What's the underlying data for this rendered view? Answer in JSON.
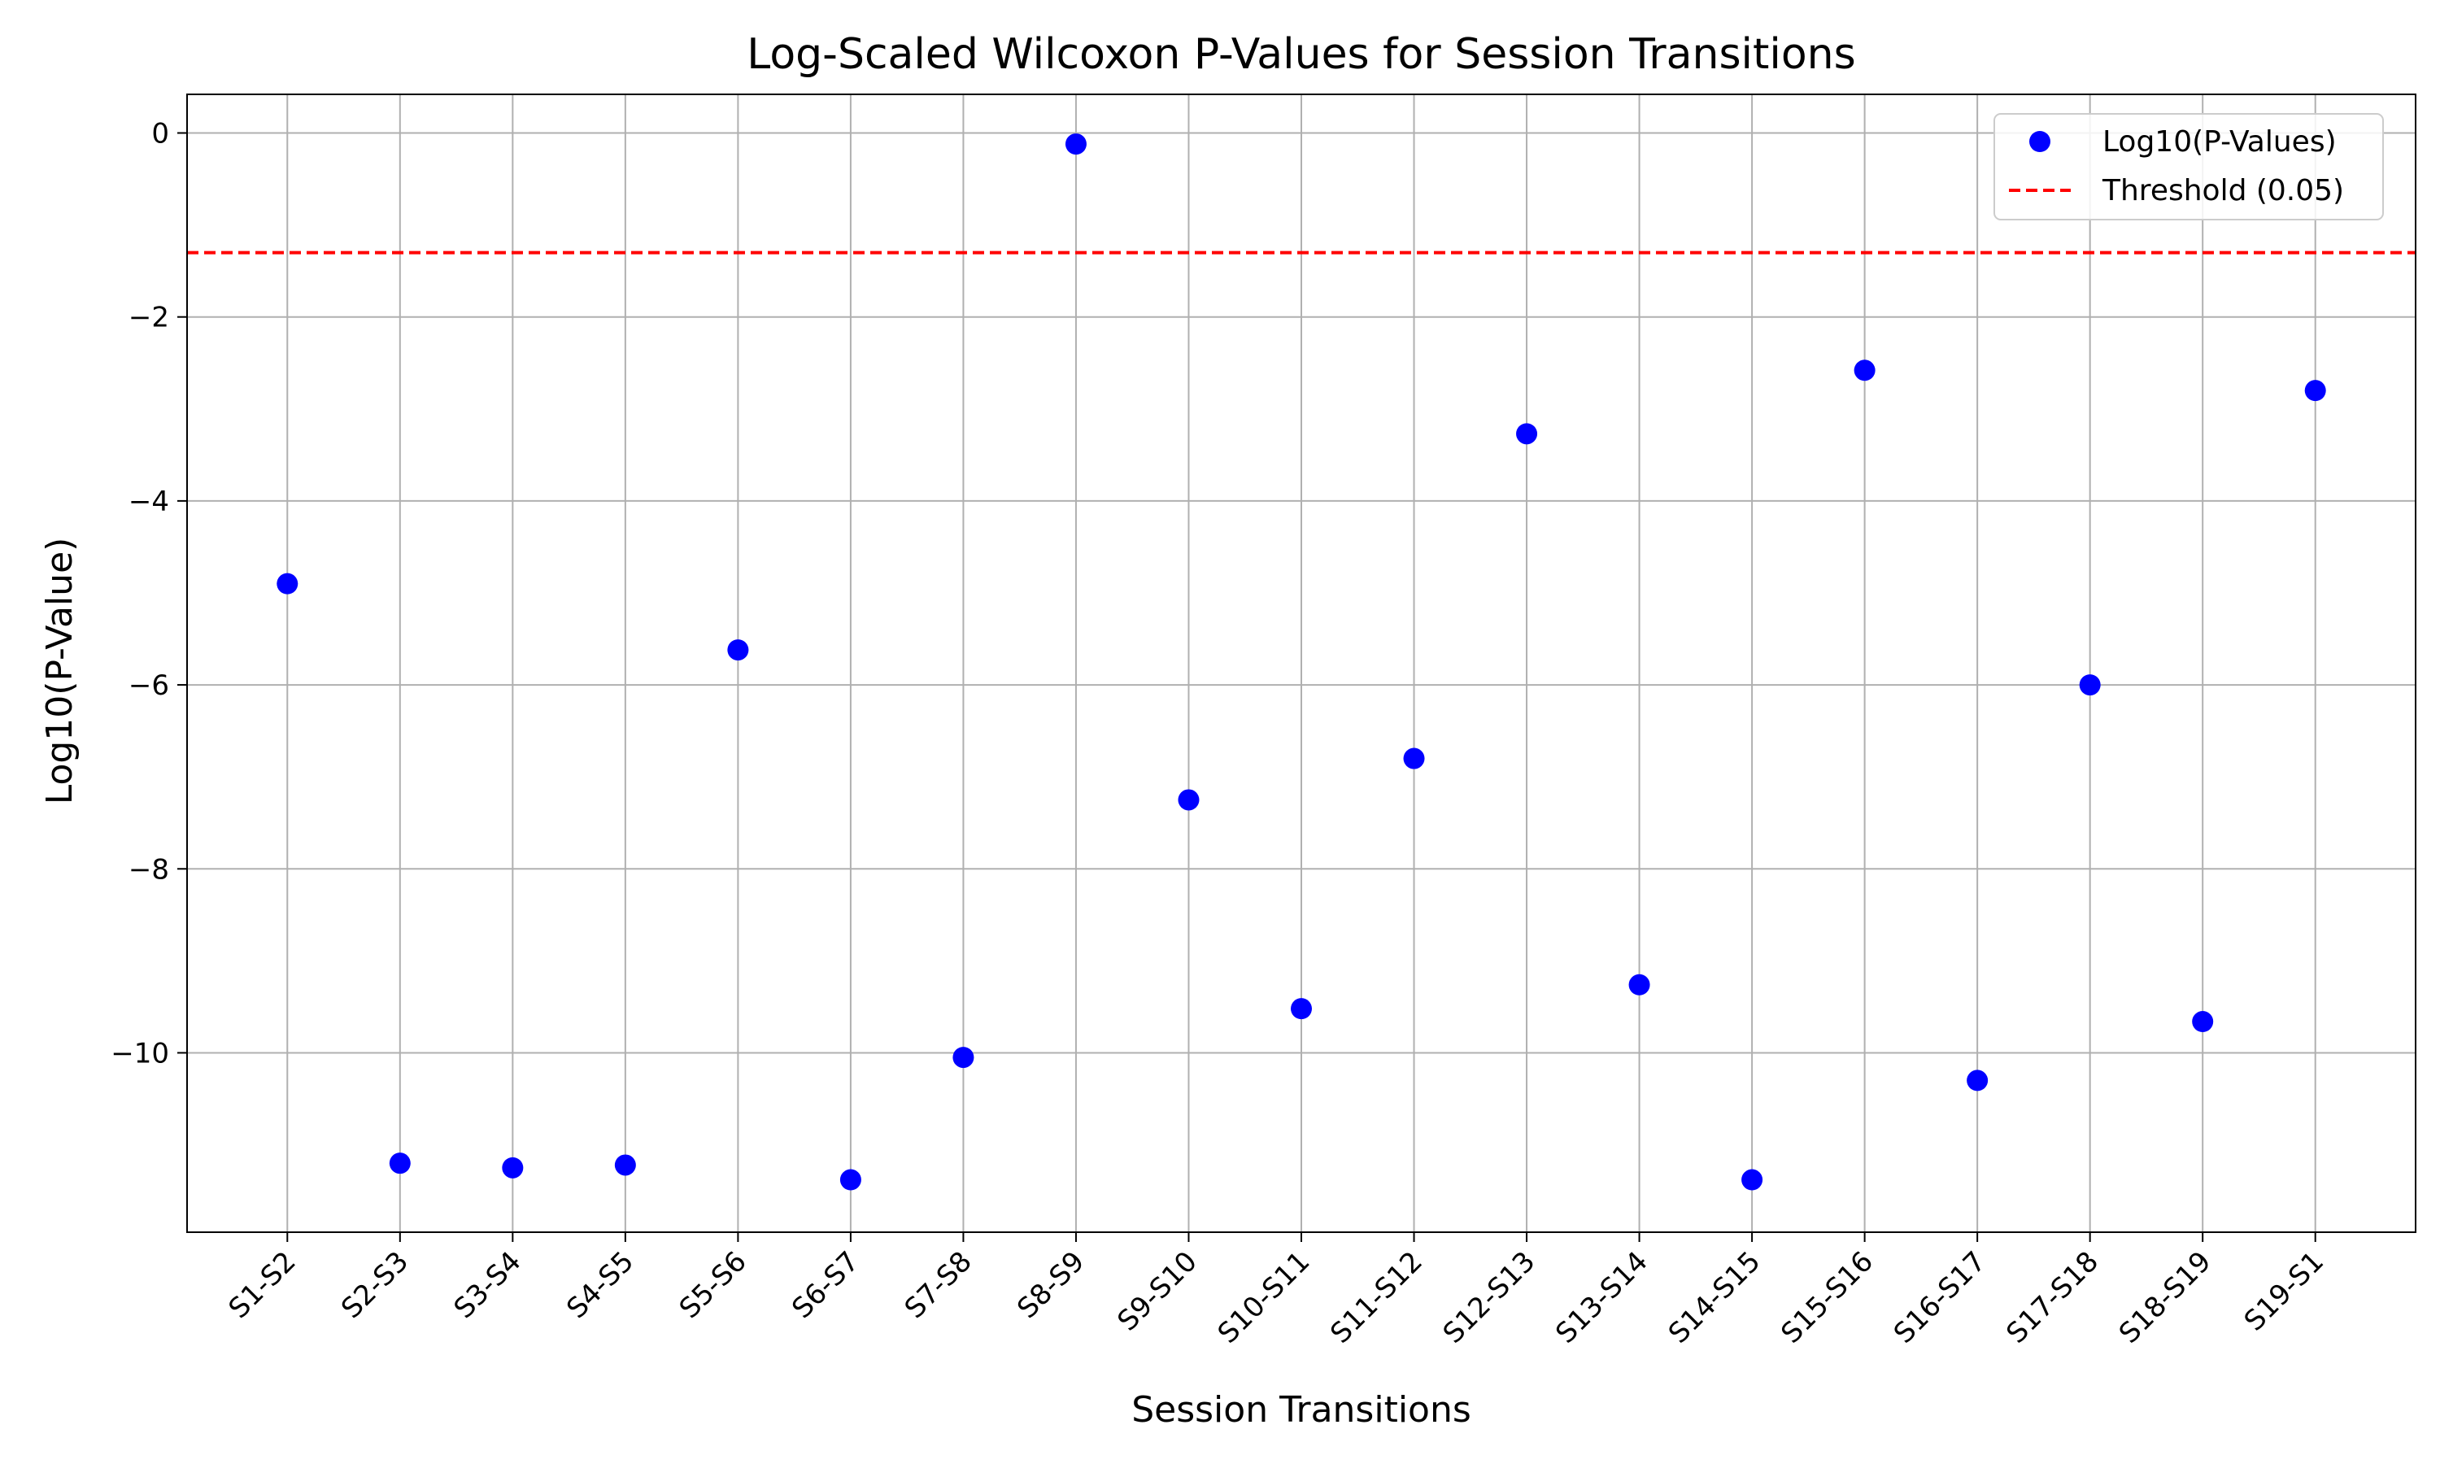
{
  "chart_data": {
    "type": "scatter",
    "title": "Log-Scaled Wilcoxon P-Values for Session Transitions",
    "xlabel": "Session Transitions",
    "ylabel": "Log10(P-Value)",
    "categories": [
      "S1-S2",
      "S2-S3",
      "S3-S4",
      "S4-S5",
      "S5-S6",
      "S6-S7",
      "S7-S8",
      "S8-S9",
      "S9-S10",
      "S10-S11",
      "S11-S12",
      "S12-S13",
      "S13-S14",
      "S14-S15",
      "S15-S16",
      "S16-S17",
      "S17-S18",
      "S18-S19",
      "S19-S1"
    ],
    "series": [
      {
        "name": "Log10(P-Values)",
        "color": "#0000ff",
        "values": [
          -4.9,
          -11.2,
          -11.25,
          -11.22,
          -5.62,
          -11.38,
          -10.05,
          -0.12,
          -7.25,
          -9.52,
          -6.8,
          -3.27,
          -9.26,
          -11.38,
          -2.58,
          -10.3,
          -6.0,
          -9.66,
          -2.8
        ]
      }
    ],
    "threshold": {
      "name": "Threshold (0.05)",
      "value": -1.30103,
      "color": "#ff0000",
      "style": "dashed"
    },
    "ylim": [
      -11.95,
      0.42
    ],
    "yticks": [
      0,
      -2,
      -4,
      -6,
      -8,
      -10
    ],
    "ytick_labels": [
      "0",
      "−2",
      "−4",
      "−6",
      "−8",
      "−10"
    ],
    "grid": true,
    "legend_position": "top-right"
  }
}
